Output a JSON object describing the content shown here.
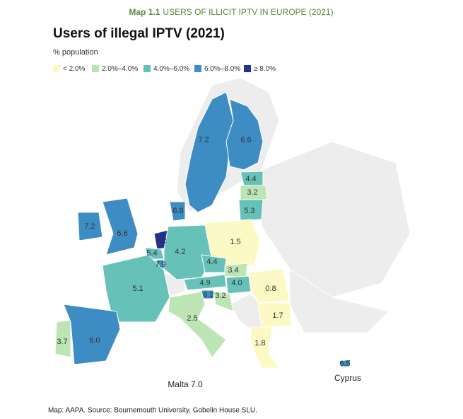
{
  "header": {
    "map_number": "Map 1.1",
    "title": "USERS OF ILLICIT IPTV IN EUROPE (2021)"
  },
  "title": "Users of illegal IPTV (2021)",
  "subtitle": "% population",
  "legend": [
    {
      "label": "< 2.0%",
      "color": "#fdf9c4"
    },
    {
      "label": "2.0%–4.0%",
      "color": "#bde5b4"
    },
    {
      "label": "4.0%–6.0%",
      "color": "#66c2b8"
    },
    {
      "label": "6.0%–8.0%",
      "color": "#3d8cc4"
    },
    {
      "label": "≥ 8.0%",
      "color": "#233191"
    }
  ],
  "regions": [
    {
      "label": "7.2",
      "color": "#3d8cc4"
    },
    {
      "label": "6.6",
      "color": "#3d8cc4"
    },
    {
      "label": "4.4",
      "color": "#66c2b8"
    },
    {
      "label": "3.2",
      "color": "#bde5b4"
    },
    {
      "label": "5.3",
      "color": "#66c2b8"
    },
    {
      "label": "6.8",
      "color": "#3d8cc4"
    },
    {
      "label": "7.2",
      "color": "#3d8cc4"
    },
    {
      "label": "6.6",
      "color": "#3d8cc4"
    },
    {
      "label": "1.5",
      "color": "#fdf9c4"
    },
    {
      "label": "8.2",
      "color": "#233191"
    },
    {
      "label": "5.4",
      "color": "#66c2b8"
    },
    {
      "label": "7.9",
      "color": "#3d8cc4"
    },
    {
      "label": "4.2",
      "color": "#66c2b8"
    },
    {
      "label": "4.4",
      "color": "#66c2b8"
    },
    {
      "label": "3.4",
      "color": "#bde5b4"
    },
    {
      "label": "5.1",
      "color": "#66c2b8"
    },
    {
      "label": "4.9",
      "color": "#66c2b8"
    },
    {
      "label": "4.0",
      "color": "#66c2b8"
    },
    {
      "label": "6.2",
      "color": "#3d8cc4"
    },
    {
      "label": "3.2",
      "color": "#bde5b4"
    },
    {
      "label": "0.8",
      "color": "#fdf9c4"
    },
    {
      "label": "1.7",
      "color": "#fdf9c4"
    },
    {
      "label": "2.5",
      "color": "#bde5b4"
    },
    {
      "label": "3.7",
      "color": "#bde5b4"
    },
    {
      "label": "6.0",
      "color": "#3d8cc4"
    },
    {
      "label": "1.8",
      "color": "#fdf9c4"
    },
    {
      "label": "6.5",
      "color": "#3d8cc4"
    }
  ],
  "malta_label": "Malta 7.0",
  "cyprus_label": "Cyprus",
  "source": "Map: AAPA. Source: Bournemouth University, Gobelin House SLU."
}
